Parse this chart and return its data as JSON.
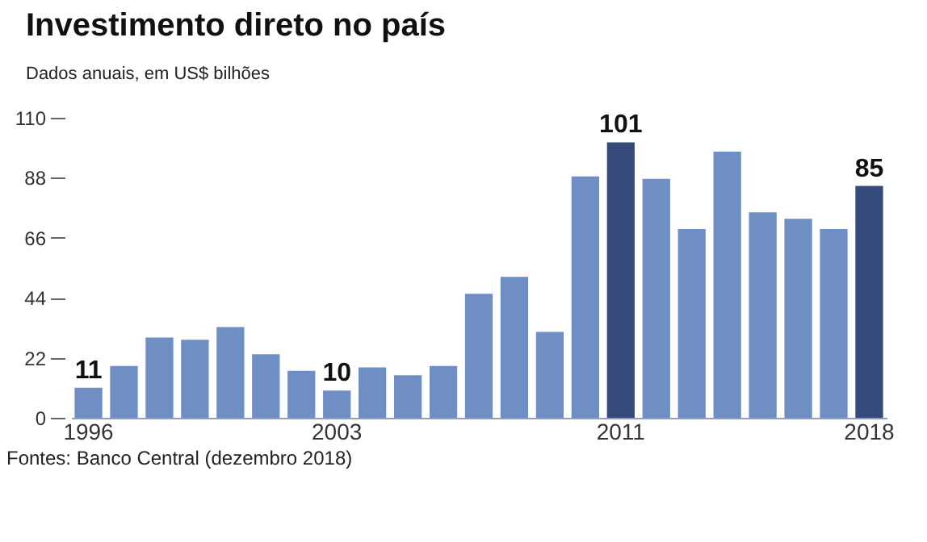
{
  "chart_data": {
    "type": "bar",
    "title": "Investimento direto no país",
    "subtitle": "Dados anuais, em US$ bilhões",
    "categories": [
      "1996",
      null,
      null,
      null,
      null,
      null,
      null,
      "2003",
      null,
      null,
      null,
      null,
      null,
      null,
      null,
      "2011",
      null,
      null,
      null,
      null,
      null,
      null,
      "2018"
    ],
    "values": [
      11,
      19,
      29.4,
      28.6,
      33.3,
      23.3,
      17.2,
      10,
      18.5,
      15.6,
      19,
      45.5,
      51.7,
      31.5,
      88.5,
      101,
      87.6,
      69.2,
      97.6,
      75.3,
      73,
      69.2,
      85
    ],
    "colors": [
      "#6f8fc4",
      "#6f8fc4",
      "#6f8fc4",
      "#6f8fc4",
      "#6f8fc4",
      "#6f8fc4",
      "#6f8fc4",
      "#6f8fc4",
      "#6f8fc4",
      "#6f8fc4",
      "#6f8fc4",
      "#6f8fc4",
      "#6f8fc4",
      "#6f8fc4",
      "#6f8fc4",
      "#364a7c",
      "#6f8fc4",
      "#6f8fc4",
      "#6f8fc4",
      "#6f8fc4",
      "#6f8fc4",
      "#6f8fc4",
      "#364a7c"
    ],
    "value_labels": [
      "11",
      null,
      null,
      null,
      null,
      null,
      null,
      "10",
      null,
      null,
      null,
      null,
      null,
      null,
      null,
      "101",
      null,
      null,
      null,
      null,
      null,
      null,
      "85"
    ],
    "ylim": [
      0,
      110
    ],
    "yticks": [
      0,
      22,
      44,
      66,
      88,
      110
    ],
    "grid": false,
    "annotations": [
      "Fontes: Banco Central (dezembro 2018)"
    ]
  }
}
